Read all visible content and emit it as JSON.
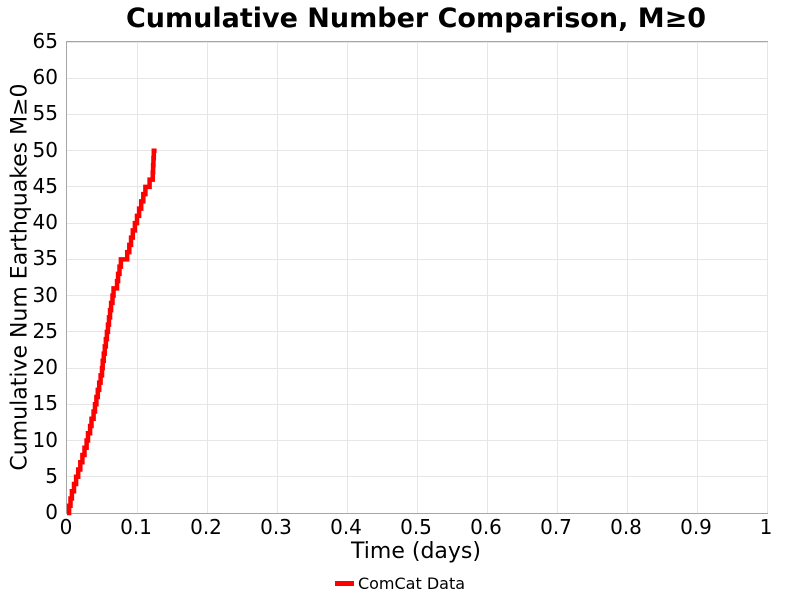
{
  "title": "Cumulative Number Comparison, M≥0",
  "colors": {
    "line": "#ff0000",
    "spine": "#a6a6a6",
    "grid": "#e6e6e6",
    "text": "#000000",
    "background": "#ffffff"
  },
  "chart_data": {
    "type": "line",
    "subtype": "cumulative-step",
    "title": "Cumulative Number Comparison, M≥0",
    "xlabel": "Time (days)",
    "ylabel": "Cumulative Num Earthquakes M≥0",
    "xlim": [
      0,
      1
    ],
    "ylim": [
      0,
      65
    ],
    "x_ticks": [
      0,
      0.1,
      0.2,
      0.3,
      0.4,
      0.5,
      0.6,
      0.7,
      0.8,
      0.9,
      1
    ],
    "x_tick_labels": [
      "0",
      "0.1",
      "0.2",
      "0.3",
      "0.4",
      "0.5",
      "0.6",
      "0.7",
      "0.8",
      "0.9",
      "1"
    ],
    "y_ticks": [
      0,
      5,
      10,
      15,
      20,
      25,
      30,
      35,
      40,
      45,
      50,
      55,
      60,
      65
    ],
    "y_tick_labels": [
      "0",
      "5",
      "10",
      "15",
      "20",
      "25",
      "30",
      "35",
      "40",
      "45",
      "50",
      "55",
      "60",
      "65"
    ],
    "grid": true,
    "legend_position": "bottom-center",
    "series": [
      {
        "name": "ComCat Data",
        "color": "#ff0000",
        "line_width": 4.5,
        "total_events": 50,
        "start_time_days": 0,
        "end_time_days": 0.128,
        "event_times_days": [
          0.003,
          0.005,
          0.007,
          0.01,
          0.013,
          0.016,
          0.019,
          0.022,
          0.025,
          0.028,
          0.03,
          0.033,
          0.035,
          0.038,
          0.04,
          0.042,
          0.044,
          0.046,
          0.048,
          0.05,
          0.051,
          0.0525,
          0.054,
          0.0555,
          0.057,
          0.0585,
          0.06,
          0.0615,
          0.063,
          0.065,
          0.0665,
          0.0715,
          0.073,
          0.075,
          0.077,
          0.086,
          0.089,
          0.0915,
          0.094,
          0.097,
          0.1,
          0.103,
          0.106,
          0.109,
          0.112,
          0.118,
          0.1225,
          0.123,
          0.1235,
          0.124
        ]
      }
    ]
  },
  "legend": {
    "items": [
      {
        "label": "ComCat Data",
        "color": "#ff0000"
      }
    ]
  }
}
